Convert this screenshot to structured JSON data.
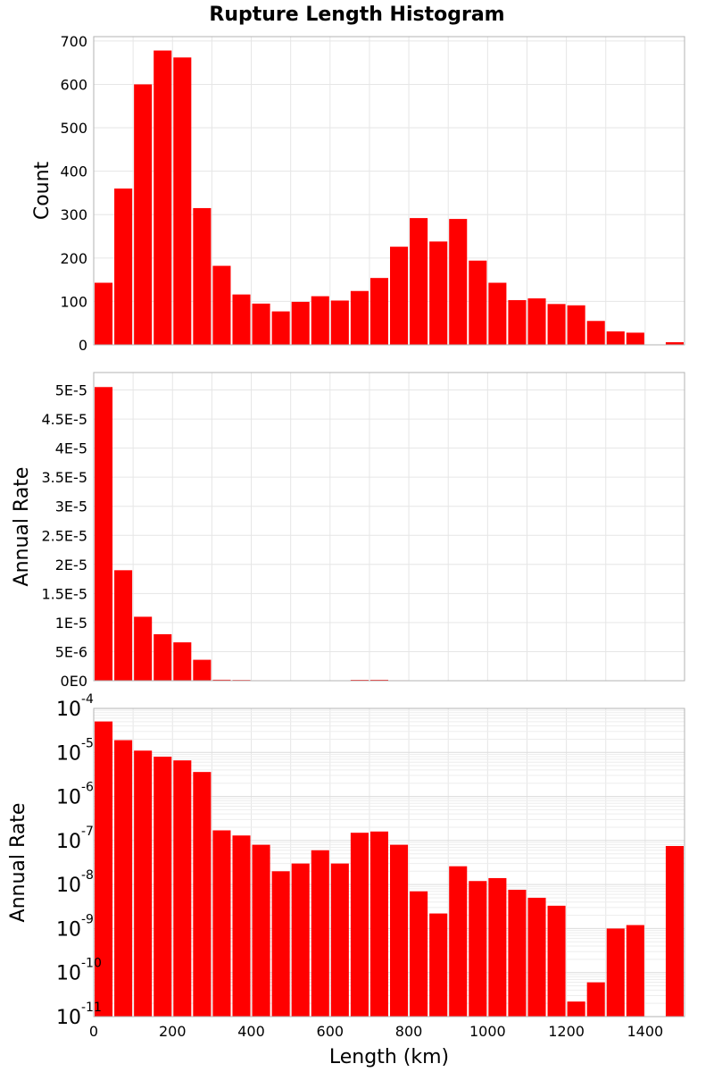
{
  "chart_data": {
    "type": "bar",
    "title": "Rupture Length Histogram",
    "xlabel": "Length (km)",
    "xlim": [
      0,
      1500
    ],
    "bin_width": 50,
    "x_ticks": [
      "0",
      "200",
      "400",
      "600",
      "800",
      "1000",
      "1200",
      "1400"
    ],
    "bar_color": "#ff0000",
    "grid": true,
    "panels": [
      {
        "id": "count",
        "ylabel": "Count",
        "scale": "linear",
        "ylim": [
          0,
          710
        ],
        "y_ticks": [
          {
            "value": 0,
            "label": "0"
          },
          {
            "value": 100,
            "label": "100"
          },
          {
            "value": 200,
            "label": "200"
          },
          {
            "value": 300,
            "label": "300"
          },
          {
            "value": 400,
            "label": "400"
          },
          {
            "value": 500,
            "label": "500"
          },
          {
            "value": 600,
            "label": "600"
          },
          {
            "value": 700,
            "label": "700"
          }
        ],
        "values": [
          143,
          360,
          600,
          678,
          662,
          315,
          182,
          116,
          95,
          77,
          99,
          112,
          102,
          124,
          154,
          226,
          292,
          238,
          290,
          194,
          143,
          103,
          107,
          94,
          91,
          55,
          31,
          28,
          0,
          6
        ]
      },
      {
        "id": "rate-linear",
        "ylabel": "Annual Rate",
        "scale": "linear",
        "ylim": [
          0,
          5.3e-05
        ],
        "y_ticks": [
          {
            "value": 0,
            "label": "0E0"
          },
          {
            "value": 5e-06,
            "label": "5E-6"
          },
          {
            "value": 1e-05,
            "label": "1E-5"
          },
          {
            "value": 1.5e-05,
            "label": "1.5E-5"
          },
          {
            "value": 2e-05,
            "label": "2E-5"
          },
          {
            "value": 2.5e-05,
            "label": "2.5E-5"
          },
          {
            "value": 3e-05,
            "label": "3E-5"
          },
          {
            "value": 3.5e-05,
            "label": "3.5E-5"
          },
          {
            "value": 4e-05,
            "label": "4E-5"
          },
          {
            "value": 4.5e-05,
            "label": "4.5E-5"
          },
          {
            "value": 5e-05,
            "label": "5E-5"
          }
        ],
        "values": [
          5.05e-05,
          1.9e-05,
          1.1e-05,
          8e-06,
          6.6e-06,
          3.6e-06,
          1.7e-07,
          1.3e-07,
          8e-08,
          2e-08,
          3e-08,
          6e-08,
          3e-08,
          1.5e-07,
          1.6e-07,
          8e-08,
          7e-09,
          2.2e-09,
          2.6e-08,
          1.2e-08,
          1.4e-08,
          7.6e-09,
          5e-09,
          3.3e-09,
          2.2e-11,
          6e-11,
          1e-09,
          1.2e-09,
          0,
          7.5e-08
        ]
      },
      {
        "id": "rate-log",
        "ylabel": "Annual Rate",
        "scale": "log",
        "ylim": [
          1e-11,
          0.0001
        ],
        "y_ticks": [
          {
            "value": 1e-11,
            "base": "10",
            "exp": "-11"
          },
          {
            "value": 1e-10,
            "base": "10",
            "exp": "-10"
          },
          {
            "value": 1e-09,
            "base": "10",
            "exp": "-9"
          },
          {
            "value": 1e-08,
            "base": "10",
            "exp": "-8"
          },
          {
            "value": 1e-07,
            "base": "10",
            "exp": "-7"
          },
          {
            "value": 1e-06,
            "base": "10",
            "exp": "-6"
          },
          {
            "value": 1e-05,
            "base": "10",
            "exp": "-5"
          },
          {
            "value": 0.0001,
            "base": "10",
            "exp": "-4"
          }
        ],
        "values": [
          5.05e-05,
          1.9e-05,
          1.1e-05,
          8e-06,
          6.6e-06,
          3.6e-06,
          1.7e-07,
          1.3e-07,
          8e-08,
          2e-08,
          3e-08,
          6e-08,
          3e-08,
          1.5e-07,
          1.6e-07,
          8e-08,
          7e-09,
          2.2e-09,
          2.6e-08,
          1.2e-08,
          1.4e-08,
          7.6e-09,
          5e-09,
          3.3e-09,
          2.2e-11,
          6e-11,
          1e-09,
          1.2e-09,
          0,
          7.5e-08
        ]
      }
    ]
  }
}
